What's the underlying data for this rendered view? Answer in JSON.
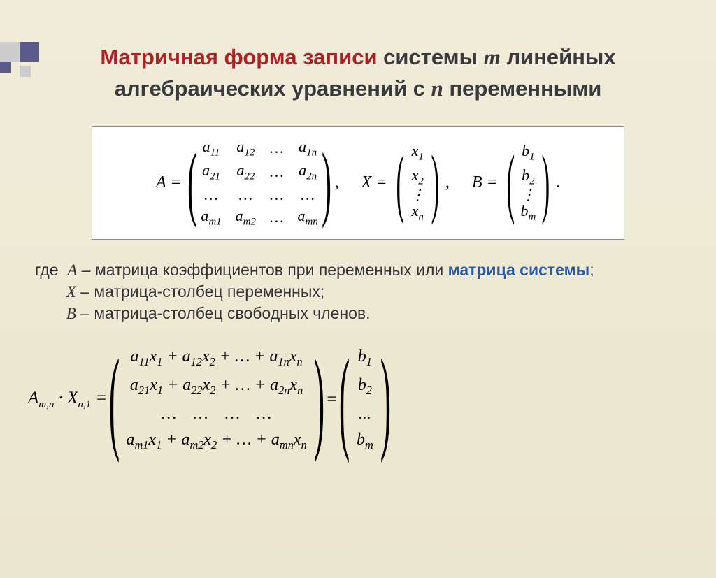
{
  "title": {
    "part1_red": "Матричная форма записи",
    "part2": " системы ",
    "var_m": "m",
    "part3": " линейных алгебраических уравнений с ",
    "var_n": "n",
    "part4": " переменными"
  },
  "top_formula": {
    "A_label": "A =",
    "A_matrix": [
      [
        "a₁₁",
        "a₁₂",
        "…",
        "a₁ₙ"
      ],
      [
        "a₂₁",
        "a₂₂",
        "…",
        "a₂ₙ"
      ],
      [
        "…",
        "…",
        "…",
        "…"
      ],
      [
        "aₘ₁",
        "aₘ₂",
        "…",
        "aₘₙ"
      ]
    ],
    "comma1": ",",
    "X_label": "X =",
    "X_vec": [
      "x₁",
      "x₂",
      "⋮",
      "xₙ"
    ],
    "comma2": ",",
    "B_label": "B =",
    "B_vec": [
      "b₁",
      "b₂",
      "⋮",
      "bₘ"
    ],
    "period": "."
  },
  "legend": {
    "where": "где ",
    "A": "A",
    "A_desc": " – матрица коэффициентов при переменных или ",
    "A_hl": "матрица системы",
    "A_end": ";",
    "X": "X",
    "X_desc": " – матрица-столбец переменных;",
    "B": "B",
    "B_desc": " – матрица-столбец свободных членов."
  },
  "bottom_formula": {
    "lhs_label": "Aₘ,ₙ · Xₙ,₁ =",
    "AX_rows": [
      "a₁₁x₁ + a₁₂x₂ + … + a₁ₙxₙ",
      "a₂₁x₁ + a₂₂x₂ + … + a₂ₙxₙ",
      "…    …    …    …",
      "aₘ₁x₁ + aₘ₂x₂ + … + aₘₙxₙ"
    ],
    "eq": " = ",
    "B_vec": [
      "b₁",
      "b₂",
      "...",
      "bₘ"
    ]
  },
  "colors": {
    "background_from": "#f0ecd8",
    "background_to": "#ebe6ce",
    "title_red": "#b02020",
    "highlight_blue": "#2a5ab0",
    "box_bg": "#ffffff",
    "box_border": "#888888",
    "corner_grey": "#cdcdcd",
    "corner_blue": "#5a5a8a"
  },
  "typography": {
    "title_fontsize": 31,
    "legend_fontsize": 23,
    "formula_fontsize": 24,
    "bottom_formula_fontsize": 25
  }
}
